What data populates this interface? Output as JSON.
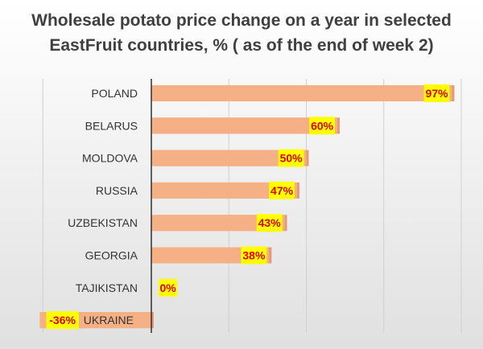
{
  "title_line1": "Wholesale potato price change on a year in selected",
  "title_line2": "EastFruit countries, % ( as of the end of week 2)",
  "colors": {
    "bar": "#f5b085",
    "bar_shadow": "#e59a70",
    "label_bg": "#ffff00",
    "label_text": "#e00000"
  },
  "chart_data": {
    "type": "bar",
    "orientation": "horizontal",
    "title": "Wholesale potato price change on a year in selected EastFruit countries, % ( as of the end of week 2)",
    "categories": [
      "POLAND",
      "BELARUS",
      "MOLDOVA",
      "RUSSIA",
      "UZBEKISTAN",
      "GEORGIA",
      "TAJIKISTAN",
      "UKRAINE"
    ],
    "values": [
      97,
      60,
      50,
      47,
      43,
      38,
      0,
      -36
    ],
    "labels": [
      "97%",
      "60%",
      "50%",
      "47%",
      "43%",
      "38%",
      "0%",
      "-36%"
    ],
    "xlim": [
      -40,
      100
    ],
    "grid": true,
    "legend": "none"
  }
}
